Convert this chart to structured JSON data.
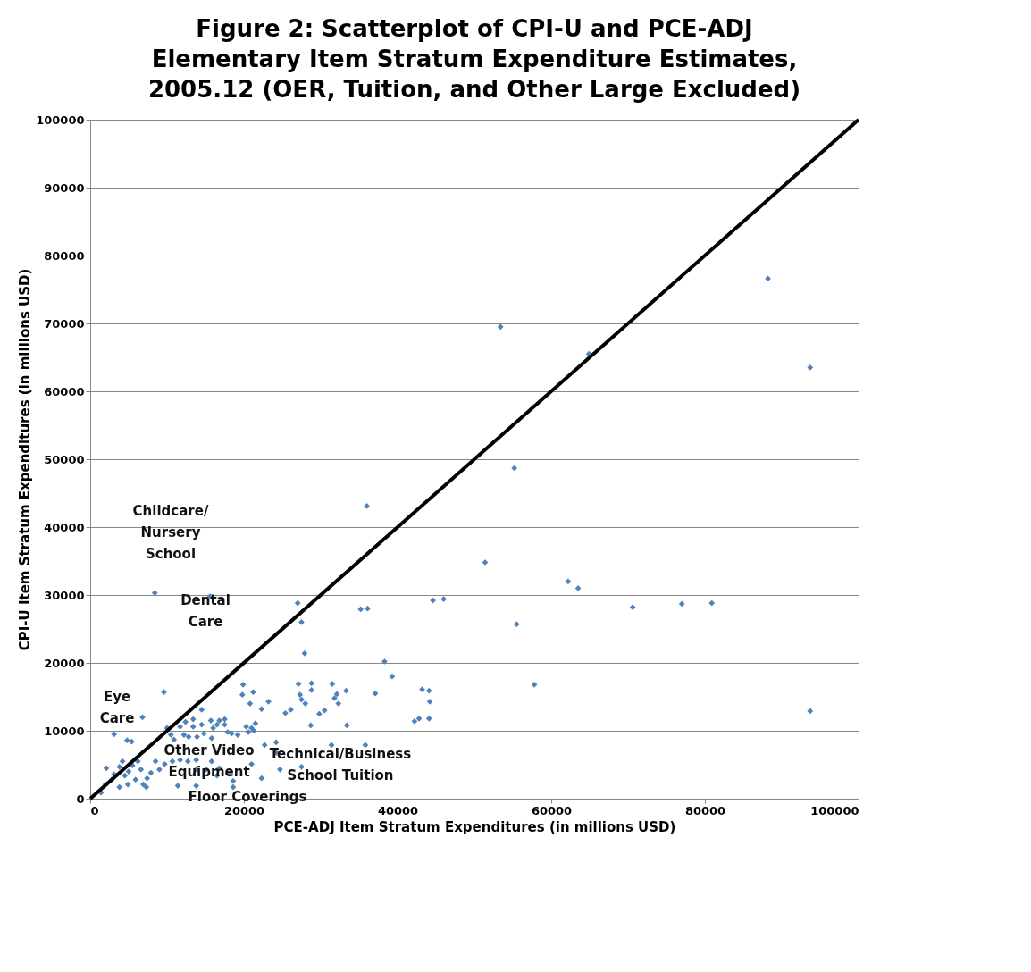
{
  "chart_data": {
    "type": "scatter",
    "title": [
      "Figure 2: Scatterplot of CPI-U and PCE-ADJ",
      "Elementary Item Stratum Expenditure Estimates,",
      "2005.12 (OER, Tuition, and Other Large Excluded)"
    ],
    "xlabel": "PCE-ADJ Item Stratum Expenditures (in millions USD)",
    "ylabel": "CPI-U Item Stratum Expenditures (in millions USD)",
    "xlim": [
      0,
      100000
    ],
    "ylim": [
      0,
      100000
    ],
    "xticks": [
      0,
      20000,
      40000,
      60000,
      80000,
      100000
    ],
    "yticks": [
      0,
      10000,
      20000,
      30000,
      40000,
      50000,
      60000,
      70000,
      80000,
      90000,
      100000
    ],
    "grid": "y",
    "legend": false,
    "series": [
      {
        "color": "#4f81bd",
        "marker": "diamond",
        "x": [
          88200,
          53400,
          64900,
          93700,
          55200,
          36000,
          51400,
          62200,
          63500,
          46000,
          36100,
          70600,
          77000,
          80900,
          55500,
          38300,
          39300,
          37100,
          57800,
          43200,
          44100,
          44200,
          42200,
          42800,
          44100,
          93700,
          8400,
          15600,
          27000,
          35200,
          27500,
          44600,
          27900,
          31500,
          31800,
          32300,
          33300,
          33400,
          35800,
          30500,
          29800,
          9600,
          19900,
          19800,
          21200,
          28800,
          27100,
          28800,
          32100,
          27300,
          27500,
          28000,
          23200,
          22300,
          20800,
          26100,
          25400,
          14500,
          6800,
          28700,
          3100,
          4800,
          5400,
          10000,
          10500,
          11700,
          12200,
          12400,
          13400,
          13400,
          14500,
          14800,
          15700,
          16000,
          16500,
          16800,
          17500,
          17500,
          17900,
          18400,
          19200,
          20300,
          20600,
          21000,
          21300,
          21500,
          15800,
          13900,
          12800,
          10900,
          24200,
          22700,
          24200,
          31400,
          27500,
          24700,
          21000,
          22300,
          18600,
          18600,
          18200,
          16800,
          16500,
          15800,
          15100,
          13800,
          13800,
          13800,
          11400,
          12700,
          11700,
          10700,
          9700,
          8500,
          9000,
          7900,
          7400,
          6900,
          6600,
          6200,
          5500,
          5000,
          4500,
          4200,
          3800,
          3100,
          2800,
          2100,
          2000,
          1400,
          5900,
          7300,
          3800,
          4900
        ],
        "values": [
          76600,
          69500,
          65500,
          63500,
          48700,
          43100,
          34800,
          32000,
          31000,
          29400,
          28000,
          28200,
          28700,
          28800,
          25700,
          20200,
          18000,
          15500,
          16800,
          16100,
          15900,
          14300,
          11400,
          11800,
          11800,
          12900,
          30300,
          29800,
          28800,
          27900,
          26000,
          29200,
          21400,
          16900,
          14800,
          14000,
          15900,
          10800,
          7900,
          13000,
          12500,
          15700,
          16800,
          15300,
          15700,
          17000,
          16900,
          16000,
          15400,
          15300,
          14600,
          14000,
          14300,
          13200,
          14000,
          13100,
          12600,
          13100,
          12000,
          10800,
          9500,
          8600,
          8400,
          10400,
          9400,
          10600,
          9400,
          11300,
          11700,
          10600,
          10900,
          9600,
          11500,
          10400,
          10900,
          11500,
          11700,
          10900,
          9800,
          9600,
          9400,
          10600,
          9800,
          10400,
          10000,
          11100,
          8900,
          9100,
          9100,
          8700,
          8300,
          7900,
          6800,
          7900,
          4700,
          4300,
          5100,
          3000,
          2600,
          1700,
          3800,
          4500,
          3400,
          5500,
          4300,
          5700,
          4300,
          1900,
          1900,
          5500,
          5700,
          5500,
          5100,
          5500,
          4300,
          3800,
          3000,
          2100,
          4300,
          5500,
          4900,
          4000,
          3400,
          5500,
          4700,
          3600,
          2800,
          4500,
          2100,
          900,
          2800,
          1700,
          1700,
          2100
        ]
      },
      {
        "type": "line",
        "color": "#000000",
        "marker": "none",
        "x": [
          0,
          100000
        ],
        "values": [
          0,
          100000
        ]
      }
    ],
    "annotations": [
      "Childcare/\nNursery\nSchool",
      "Dental\nCare",
      "Eye\nCare",
      "Other Video\nEquipment",
      "Technical/Business\nSchool Tuition",
      "Floor Coverings"
    ]
  }
}
